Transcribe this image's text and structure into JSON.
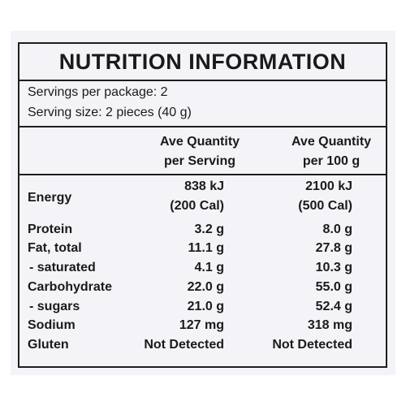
{
  "title": "NUTRITION INFORMATION",
  "servings_per_package": "Servings per package: 2",
  "serving_size": "Serving size: 2 pieces (40 g)",
  "columns": {
    "per_serving": [
      "Ave Quantity",
      "per Serving"
    ],
    "per_100g": [
      "Ave Quantity",
      "per 100 g"
    ]
  },
  "rows": [
    {
      "nutrient": "Energy",
      "per_serving": [
        "838 kJ",
        "(200 Cal)"
      ],
      "per_100g": [
        "2100 kJ",
        "(500 Cal)"
      ]
    },
    {
      "nutrient": "Protein",
      "per_serving": "3.2 g",
      "per_100g": "8.0 g"
    },
    {
      "nutrient": "Fat, total",
      "per_serving": "11.1 g",
      "per_100g": "27.8 g"
    },
    {
      "nutrient": "- saturated",
      "per_serving": "4.1 g",
      "per_100g": "10.3 g"
    },
    {
      "nutrient": "Carbohydrate",
      "per_serving": "22.0 g",
      "per_100g": "55.0 g"
    },
    {
      "nutrient": "- sugars",
      "per_serving": "21.0 g",
      "per_100g": "52.4 g"
    },
    {
      "nutrient": "Sodium",
      "per_serving": "127 mg",
      "per_100g": "318 mg"
    },
    {
      "nutrient": "Gluten",
      "per_serving": "Not Detected",
      "per_100g": "Not Detected"
    }
  ]
}
